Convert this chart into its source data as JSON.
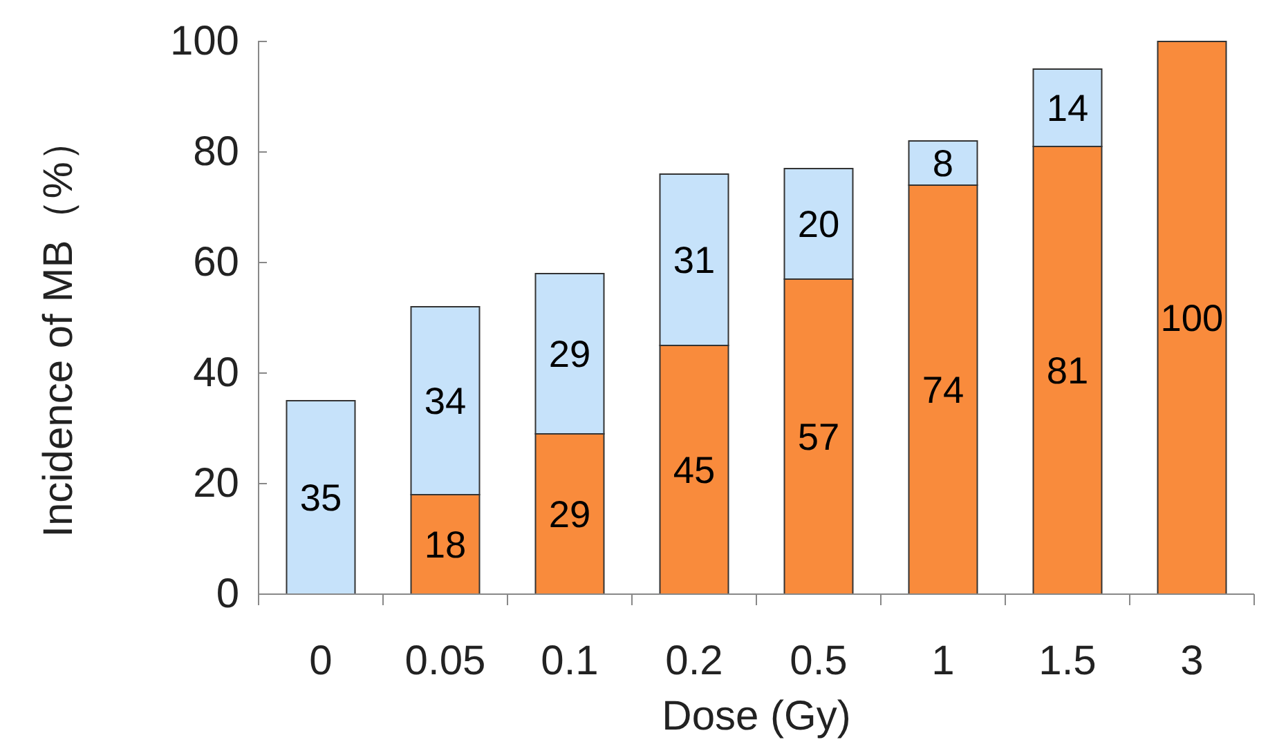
{
  "chart_data": {
    "type": "bar",
    "stacked": true,
    "xlabel": "Dose (Gy)",
    "ylabel": "Incidence of MB（%）",
    "categories": [
      "0",
      "0.05",
      "0.1",
      "0.2",
      "0.5",
      "1",
      "1.5",
      "3"
    ],
    "ylim": [
      0,
      100
    ],
    "yticks": [
      0,
      20,
      40,
      60,
      80,
      100
    ],
    "grid": false,
    "series": [
      {
        "color": "#f98b3c",
        "values": [
          null,
          18,
          29,
          45,
          57,
          74,
          81,
          100
        ],
        "value_labels": [
          null,
          "18",
          "29",
          "45",
          "57",
          "74",
          "81",
          "100"
        ]
      },
      {
        "color": "#c6e2fa",
        "values": [
          35,
          34,
          29,
          31,
          20,
          8,
          14,
          null
        ],
        "value_labels": [
          "35",
          "34",
          "29",
          "31",
          "20",
          "8",
          "14",
          null
        ]
      }
    ]
  }
}
